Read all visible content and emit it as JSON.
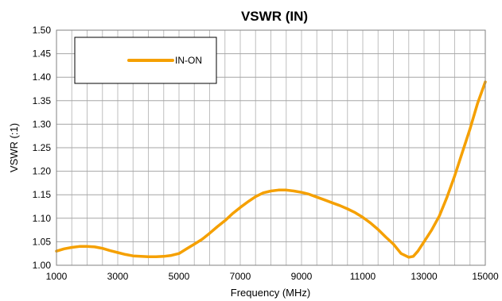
{
  "chart_data": {
    "type": "line",
    "title": "VSWR (IN)",
    "xlabel": "Frequency (MHz)",
    "ylabel": "VSWR (:1)",
    "xlim": [
      1000,
      15000
    ],
    "ylim": [
      1.0,
      1.5
    ],
    "grid": true,
    "legend_position": "top-left",
    "x_ticks": [
      "1000",
      "3000",
      "5000",
      "7000",
      "9000",
      "11000",
      "13000",
      "15000"
    ],
    "y_ticks": [
      "1.00",
      "1.05",
      "1.10",
      "1.15",
      "1.20",
      "1.25",
      "1.30",
      "1.35",
      "1.40",
      "1.45",
      "1.50"
    ],
    "series": [
      {
        "name": "IN-ON",
        "color": "#F5A000",
        "x": [
          1000,
          1250,
          1500,
          1750,
          2000,
          2250,
          2500,
          2750,
          3000,
          3250,
          3500,
          3750,
          4000,
          4250,
          4500,
          4750,
          5000,
          5250,
          5500,
          5750,
          6000,
          6250,
          6500,
          6750,
          7000,
          7250,
          7500,
          7750,
          8000,
          8250,
          8500,
          8750,
          9000,
          9250,
          9500,
          9750,
          10000,
          10250,
          10500,
          10750,
          11000,
          11250,
          11500,
          11750,
          12000,
          12250,
          12500,
          12650,
          12800,
          13000,
          13250,
          13500,
          13750,
          14000,
          14250,
          14500,
          14750,
          15000
        ],
        "values": [
          1.03,
          1.035,
          1.038,
          1.04,
          1.04,
          1.039,
          1.036,
          1.031,
          1.027,
          1.023,
          1.02,
          1.019,
          1.018,
          1.018,
          1.019,
          1.021,
          1.025,
          1.035,
          1.045,
          1.055,
          1.068,
          1.082,
          1.095,
          1.11,
          1.123,
          1.135,
          1.146,
          1.154,
          1.158,
          1.16,
          1.16,
          1.158,
          1.155,
          1.151,
          1.145,
          1.139,
          1.133,
          1.127,
          1.12,
          1.112,
          1.102,
          1.09,
          1.076,
          1.06,
          1.045,
          1.025,
          1.017,
          1.019,
          1.03,
          1.05,
          1.075,
          1.105,
          1.145,
          1.19,
          1.24,
          1.29,
          1.345,
          1.39
        ]
      }
    ]
  }
}
